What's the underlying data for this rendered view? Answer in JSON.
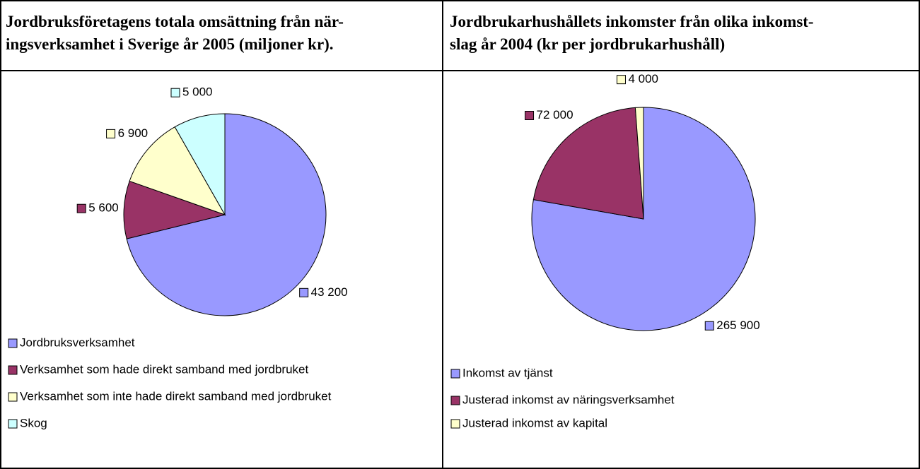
{
  "chart_data": [
    {
      "type": "pie",
      "title": [
        "Jordbruksföretagens totala omsättning från när-",
        "ingsverksamhet i Sverige år 2005 (miljoner kr)."
      ],
      "categories": [
        "Jordbruksverksamhet",
        "Verksamhet som hade direkt samband med jordbruket",
        "Verksamhet som inte hade direkt samband med jordbruket",
        "Skog"
      ],
      "values": [
        43200,
        5600,
        6900,
        5000
      ],
      "value_labels": [
        "43 200",
        "5 600",
        "6 900",
        "5 000"
      ],
      "colors": [
        "#9999ff",
        "#993366",
        "#ffffcc",
        "#ccffff"
      ]
    },
    {
      "type": "pie",
      "title": [
        "Jordbrukarhushållets inkomster från olika inkomst-",
        "slag år 2004 (kr per jordbrukarhushåll)"
      ],
      "categories": [
        "Inkomst av tjänst",
        "Justerad inkomst av näringsverksamhet",
        "Justerad inkomst av kapital"
      ],
      "values": [
        265900,
        72000,
        4000
      ],
      "value_labels": [
        "265 900",
        "72 000",
        "4 000"
      ],
      "colors": [
        "#9999ff",
        "#993366",
        "#ffffcc"
      ]
    }
  ]
}
